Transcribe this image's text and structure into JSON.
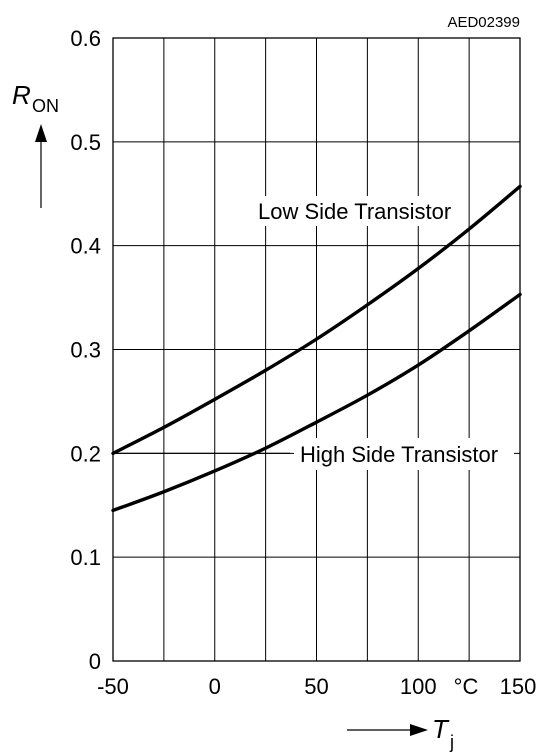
{
  "figure_code": "AED02399",
  "chart_data": {
    "type": "line",
    "xlim": [
      -50,
      150
    ],
    "ylim": [
      0,
      0.6
    ],
    "x_ticks": [
      -50,
      0,
      50,
      100,
      150
    ],
    "x_tick_labels": [
      "-50",
      "0",
      "50",
      "100",
      "150"
    ],
    "x_unit": "°C",
    "y_ticks": [
      0,
      0.1,
      0.2,
      0.3,
      0.4,
      0.5,
      0.6
    ],
    "y_tick_labels": [
      "0",
      "0.1",
      "0.2",
      "0.3",
      "0.4",
      "0.5",
      "0.6"
    ],
    "xlabel": {
      "symbol": "T",
      "subscript": "j"
    },
    "ylabel": {
      "symbol": "R",
      "subscript": "ON"
    },
    "grid": true,
    "x_grid_step": 25,
    "y_grid_step": 0.1,
    "series": [
      {
        "name": "Low Side Transistor",
        "x": [
          -50,
          -25,
          0,
          25,
          50,
          75,
          100,
          125,
          150
        ],
        "values": [
          0.2,
          0.225,
          0.252,
          0.28,
          0.31,
          0.343,
          0.378,
          0.416,
          0.457
        ]
      },
      {
        "name": "High Side Transistor",
        "x": [
          -50,
          -25,
          0,
          25,
          50,
          75,
          100,
          125,
          150
        ],
        "values": [
          0.145,
          0.163,
          0.183,
          0.205,
          0.23,
          0.256,
          0.285,
          0.318,
          0.353
        ]
      }
    ]
  }
}
